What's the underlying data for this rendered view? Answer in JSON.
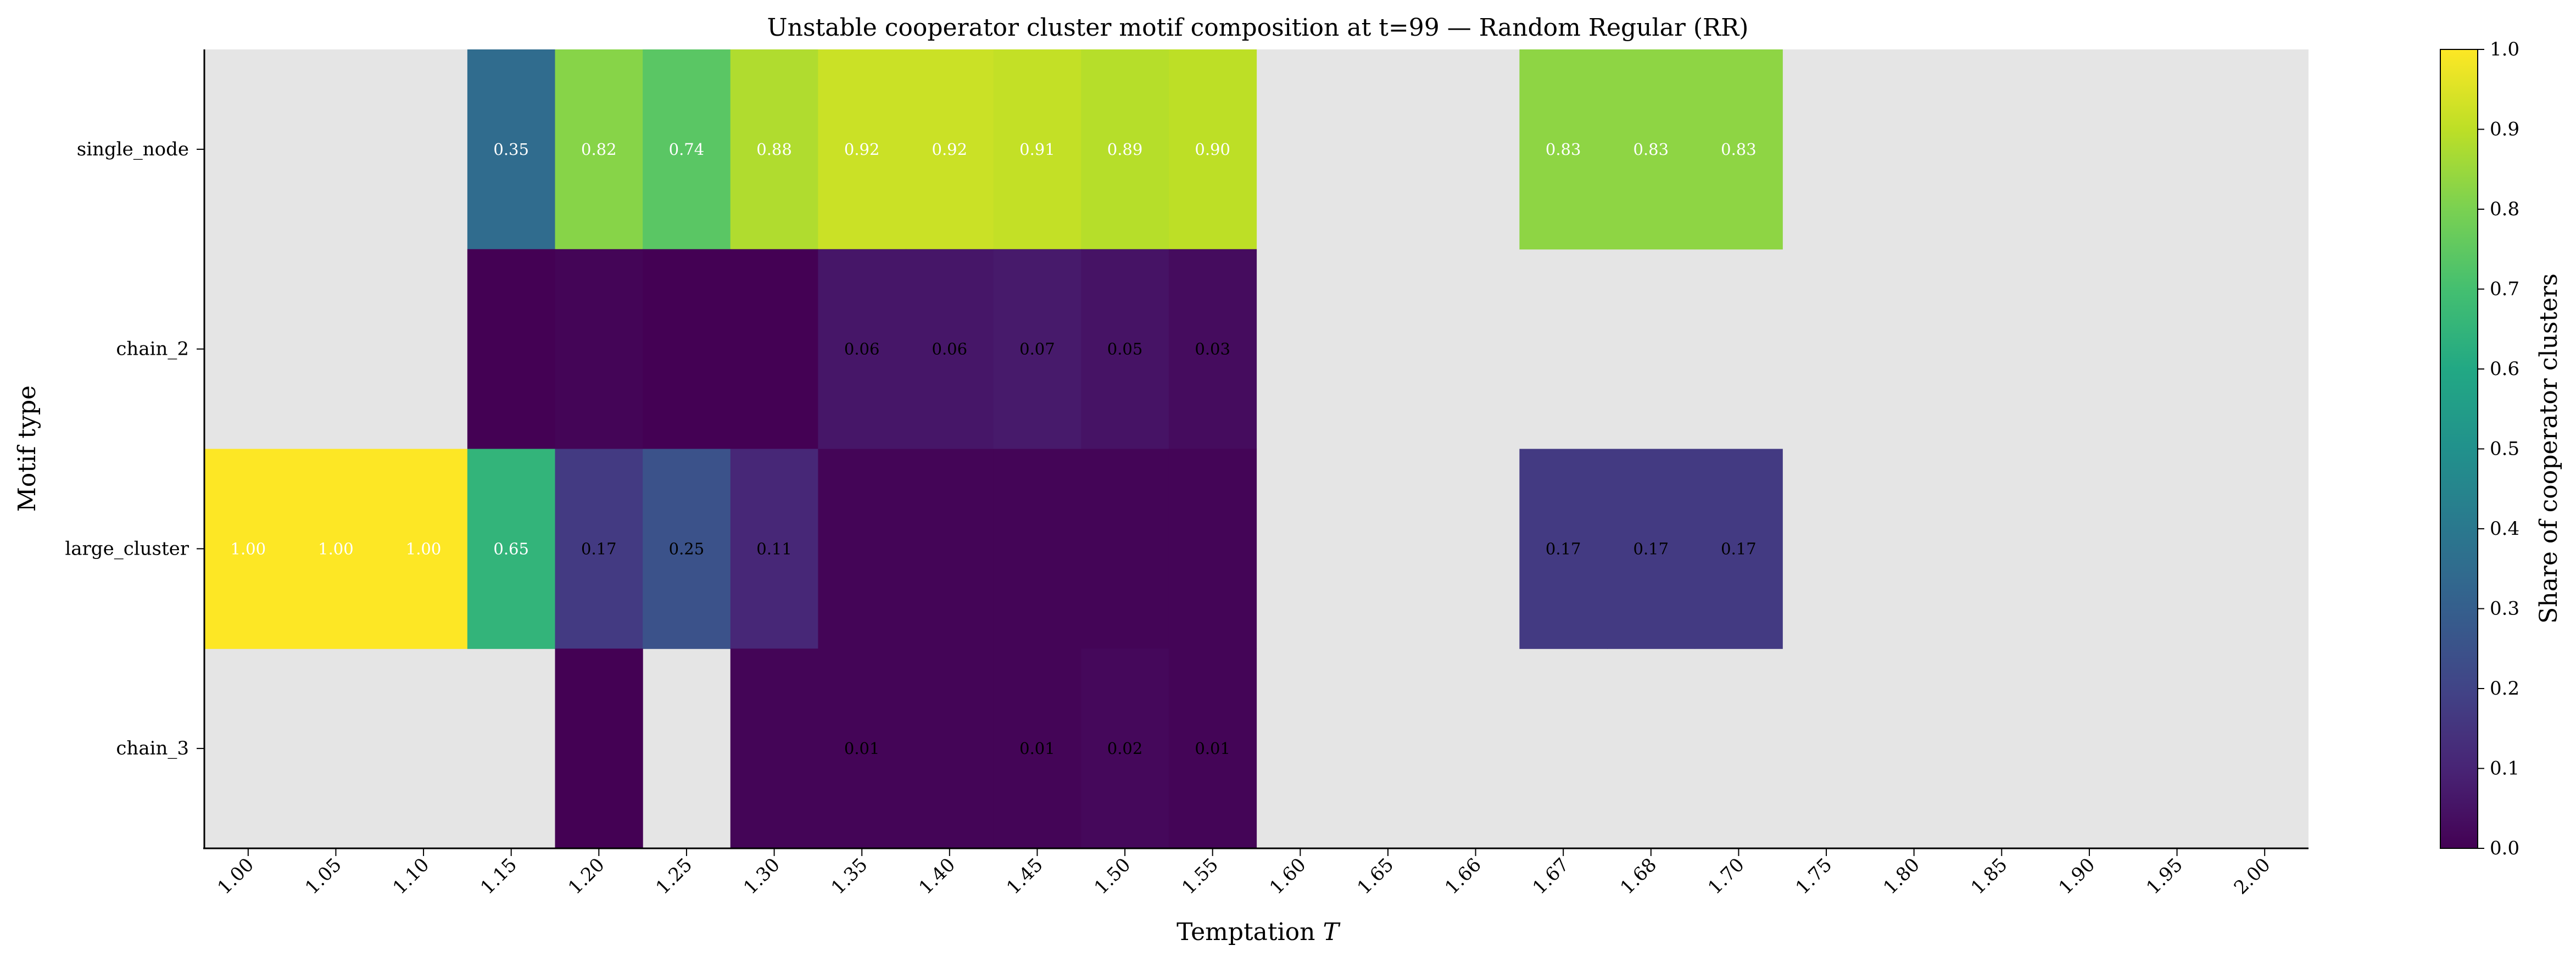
{
  "chart_data": {
    "type": "heatmap",
    "title": "Unstable cooperator cluster motif composition at t=99 — Random Regular (RR)",
    "xlabel": "Temptation",
    "xlabel_var": "T",
    "ylabel": "Motif type",
    "colorbar_label": "Share of cooperator clusters",
    "colormap": "viridis",
    "missing_color": "#e5e5e5",
    "vmin": 0.0,
    "vmax": 1.0,
    "colorbar_ticks": [
      "0.0",
      "0.1",
      "0.2",
      "0.3",
      "0.4",
      "0.5",
      "0.6",
      "0.7",
      "0.8",
      "0.9",
      "1.0"
    ],
    "x_categories": [
      "1.00",
      "1.05",
      "1.10",
      "1.15",
      "1.20",
      "1.25",
      "1.30",
      "1.35",
      "1.40",
      "1.45",
      "1.50",
      "1.55",
      "1.60",
      "1.65",
      "1.66",
      "1.67",
      "1.68",
      "1.70",
      "1.75",
      "1.80",
      "1.85",
      "1.90",
      "1.95",
      "2.00"
    ],
    "y_categories": [
      "single_node",
      "chain_2",
      "large_cluster",
      "chain_3"
    ],
    "values": [
      [
        null,
        null,
        null,
        0.35,
        0.82,
        0.74,
        0.88,
        0.92,
        0.92,
        0.91,
        0.89,
        0.9,
        null,
        null,
        null,
        0.83,
        0.83,
        0.83,
        null,
        null,
        null,
        null,
        null,
        null
      ],
      [
        null,
        null,
        null,
        0.0,
        0.01,
        0.0,
        0.0,
        0.06,
        0.06,
        0.07,
        0.05,
        0.03,
        null,
        null,
        null,
        null,
        null,
        null,
        null,
        null,
        null,
        null,
        null,
        null
      ],
      [
        1.0,
        1.0,
        1.0,
        0.65,
        0.17,
        0.25,
        0.11,
        0.01,
        0.01,
        0.01,
        0.01,
        0.01,
        null,
        null,
        null,
        0.17,
        0.17,
        0.17,
        null,
        null,
        null,
        null,
        null,
        null
      ],
      [
        null,
        null,
        null,
        null,
        0.0,
        null,
        0.01,
        0.01,
        0.01,
        0.01,
        0.02,
        0.01,
        null,
        null,
        null,
        null,
        null,
        null,
        null,
        null,
        null,
        null,
        null,
        null
      ]
    ],
    "labels": [
      [
        null,
        null,
        null,
        "0.35",
        "0.82",
        "0.74",
        "0.88",
        "0.92",
        "0.92",
        "0.91",
        "0.89",
        "0.90",
        null,
        null,
        null,
        "0.83",
        "0.83",
        "0.83",
        null,
        null,
        null,
        null,
        null,
        null
      ],
      [
        null,
        null,
        null,
        null,
        null,
        null,
        null,
        "0.06",
        "0.06",
        "0.07",
        "0.05",
        "0.03",
        null,
        null,
        null,
        null,
        null,
        null,
        null,
        null,
        null,
        null,
        null,
        null
      ],
      [
        "1.00",
        "1.00",
        "1.00",
        "0.65",
        "0.17",
        "0.25",
        "0.11",
        null,
        null,
        null,
        null,
        null,
        null,
        null,
        null,
        "0.17",
        "0.17",
        "0.17",
        null,
        null,
        null,
        null,
        null,
        null
      ],
      [
        null,
        null,
        null,
        null,
        null,
        null,
        null,
        "0.01",
        null,
        "0.01",
        "0.02",
        "0.01",
        null,
        null,
        null,
        null,
        null,
        null,
        null,
        null,
        null,
        null,
        null,
        null
      ]
    ]
  }
}
